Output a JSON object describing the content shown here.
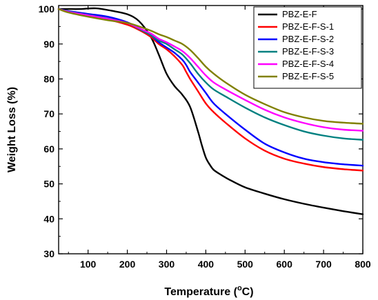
{
  "chart_data": {
    "type": "line",
    "xlabel_main": "Temperature (",
    "xlabel_sup": "o",
    "xlabel_tail": "C)",
    "ylabel": "Weight Loss (%)",
    "xlim": [
      25,
      800
    ],
    "ylim": [
      30,
      101
    ],
    "x_ticks": [
      100,
      200,
      300,
      400,
      500,
      600,
      700,
      800
    ],
    "y_ticks": [
      30,
      40,
      50,
      60,
      70,
      80,
      90,
      100
    ],
    "grid": false,
    "legend_position": "top-right",
    "series": [
      {
        "name": "PBZ-E-F",
        "color": "#000000",
        "x": [
          25,
          50,
          80,
          120,
          160,
          200,
          230,
          260,
          280,
          300,
          320,
          340,
          360,
          380,
          390,
          400,
          410,
          420,
          440,
          460,
          500,
          550,
          600,
          650,
          700,
          750,
          800
        ],
        "y": [
          100,
          100,
          100,
          100.2,
          99.5,
          98.5,
          96.5,
          92,
          87,
          81.5,
          78,
          75.5,
          72,
          65,
          61,
          57.5,
          55.5,
          54,
          52.5,
          51.2,
          49,
          47.2,
          45.6,
          44.3,
          43.2,
          42.2,
          41.3
        ]
      },
      {
        "name": "PBZ-E-F-S-1",
        "color": "#ff0000",
        "x": [
          25,
          50,
          100,
          150,
          200,
          230,
          260,
          280,
          300,
          320,
          340,
          350,
          360,
          380,
          400,
          420,
          450,
          500,
          550,
          600,
          650,
          700,
          750,
          800
        ],
        "y": [
          100,
          99.2,
          98,
          97,
          95.5,
          94,
          92,
          90,
          88.5,
          86.5,
          84,
          82,
          80,
          76.5,
          73,
          70.5,
          67.5,
          63,
          59.5,
          57.2,
          55.8,
          54.8,
          54.2,
          53.8
        ]
      },
      {
        "name": "PBZ-E-F-S-2",
        "color": "#0000ff",
        "x": [
          25,
          50,
          100,
          150,
          200,
          230,
          260,
          280,
          300,
          320,
          340,
          350,
          360,
          380,
          400,
          420,
          450,
          500,
          550,
          600,
          650,
          700,
          750,
          800
        ],
        "y": [
          100,
          99.4,
          98.6,
          97.8,
          96.2,
          94.5,
          92.5,
          90.5,
          89,
          87.5,
          85.5,
          84,
          82,
          79,
          76,
          73,
          70,
          65.5,
          61.5,
          59,
          57.2,
          56.2,
          55.6,
          55.2
        ]
      },
      {
        "name": "PBZ-E-F-S-3",
        "color": "#008080",
        "x": [
          25,
          50,
          100,
          150,
          200,
          230,
          260,
          280,
          300,
          320,
          340,
          360,
          380,
          400,
          420,
          450,
          500,
          550,
          600,
          650,
          700,
          750,
          800
        ],
        "y": [
          100,
          99.3,
          98.3,
          97.3,
          96,
          94.3,
          92.5,
          91,
          90,
          88.5,
          87,
          84.5,
          81.5,
          79,
          77,
          75,
          71.8,
          69,
          66.8,
          65,
          63.8,
          63,
          62.6
        ]
      },
      {
        "name": "PBZ-E-F-S-4",
        "color": "#ff00ff",
        "x": [
          25,
          50,
          100,
          150,
          200,
          230,
          260,
          280,
          300,
          320,
          340,
          360,
          380,
          400,
          420,
          450,
          500,
          550,
          600,
          650,
          700,
          750,
          800
        ],
        "y": [
          100,
          99.2,
          98.2,
          97.2,
          96,
          94.5,
          93,
          91.5,
          90.5,
          89.3,
          88,
          86,
          83.5,
          81,
          79,
          77,
          74,
          71.2,
          69,
          67.4,
          66.2,
          65.5,
          65.2
        ]
      },
      {
        "name": "PBZ-E-F-S-5",
        "color": "#808000",
        "x": [
          25,
          50,
          100,
          150,
          200,
          230,
          260,
          280,
          300,
          320,
          340,
          360,
          380,
          400,
          420,
          450,
          500,
          550,
          600,
          650,
          700,
          750,
          800
        ],
        "y": [
          100,
          99,
          97.8,
          96.8,
          96,
          95,
          93.8,
          92.8,
          92,
          91,
          90,
          88.3,
          86,
          83.5,
          81.5,
          79,
          75.5,
          72.8,
          70.5,
          69,
          68,
          67.5,
          67.2
        ]
      }
    ]
  }
}
